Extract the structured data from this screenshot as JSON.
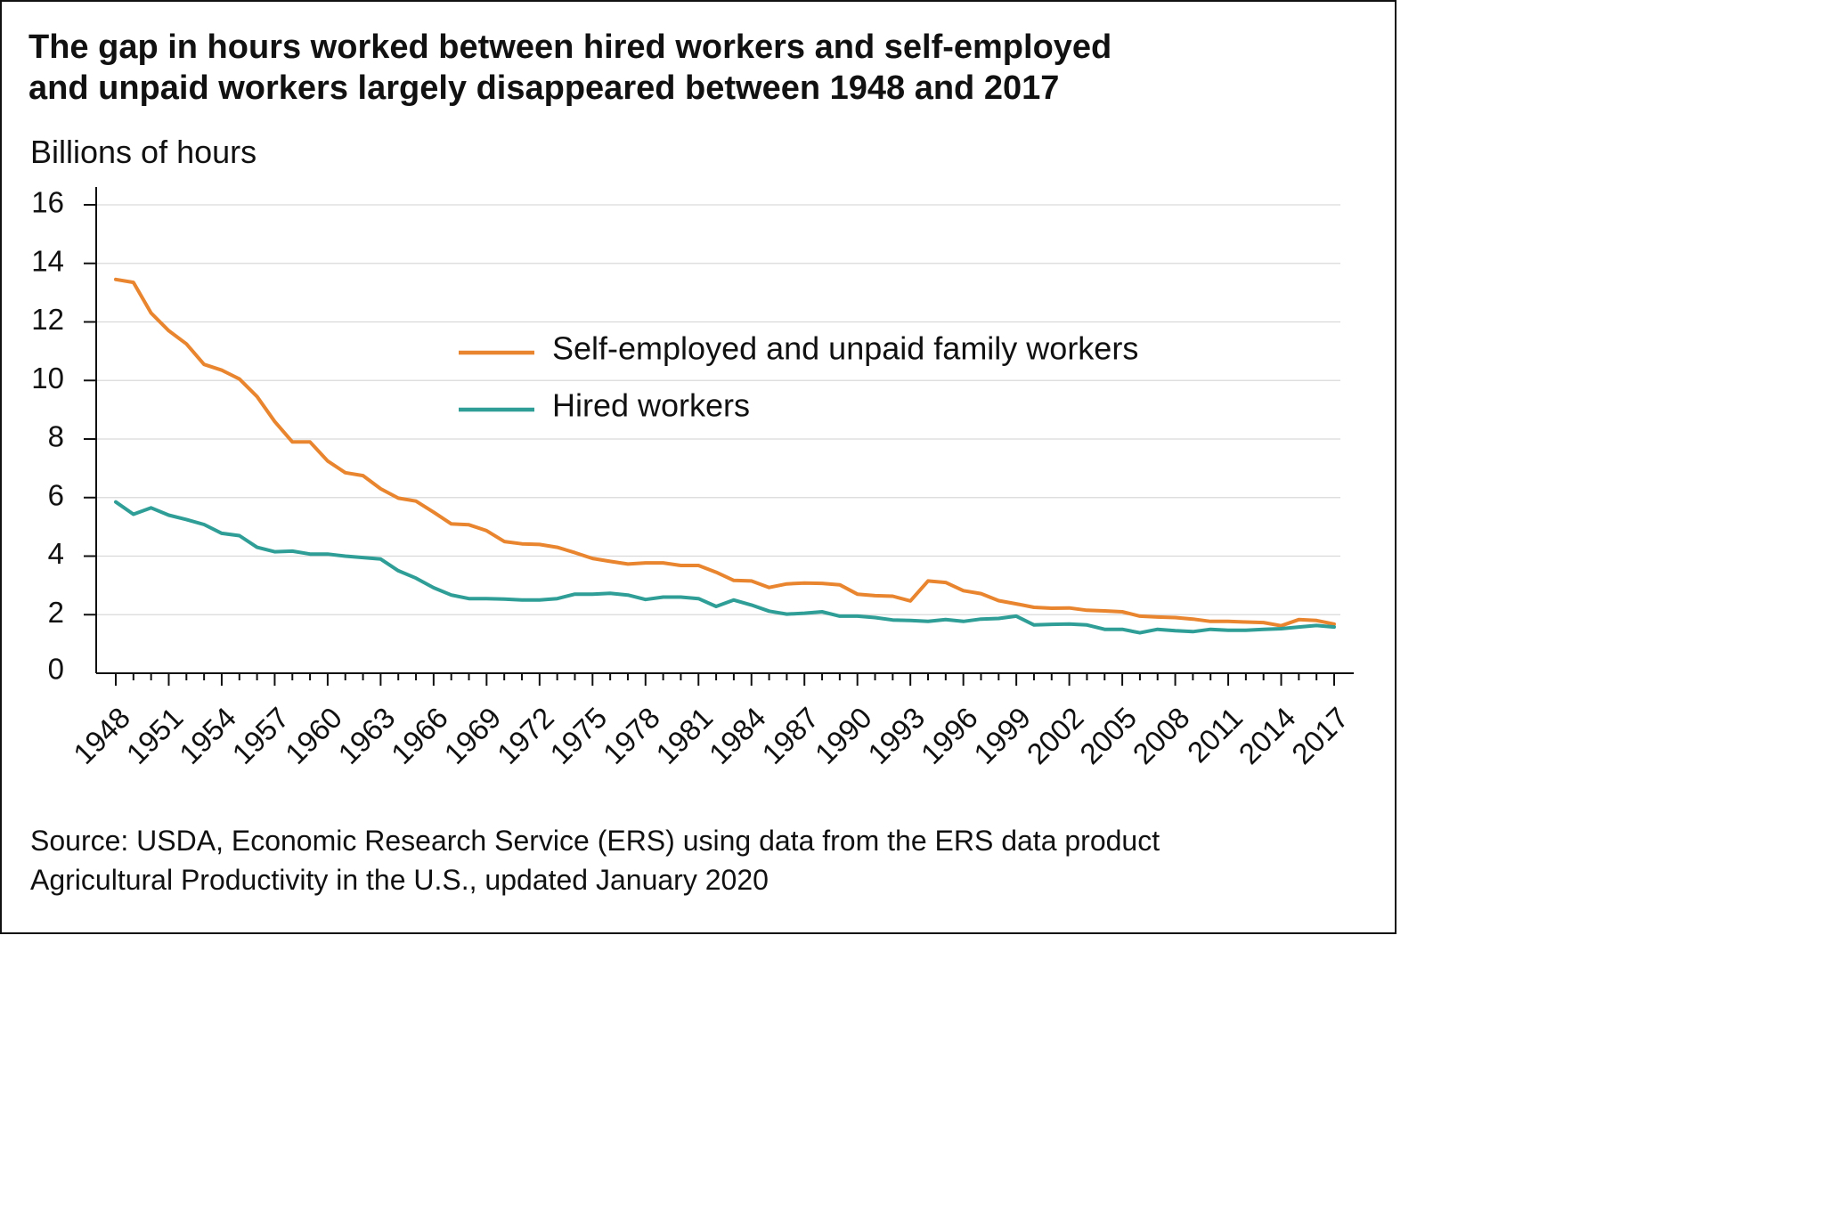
{
  "chart_data": {
    "type": "line",
    "title_lines": [
      "The gap in hours worked between hired workers and self-employed",
      "and unpaid workers largely disappeared between 1948 and 2017"
    ],
    "ylabel": "Billions of hours",
    "xlabel": "",
    "ylim": [
      0,
      16
    ],
    "yticks": [
      0,
      2,
      4,
      6,
      8,
      10,
      12,
      14,
      16
    ],
    "xlim": [
      1948,
      2017
    ],
    "xticks": [
      "1948",
      "1951",
      "1954",
      "1957",
      "1960",
      "1963",
      "1966",
      "1969",
      "1972",
      "1975",
      "1978",
      "1981",
      "1984",
      "1987",
      "1990",
      "1993",
      "1996",
      "1999",
      "2002",
      "2005",
      "2008",
      "2011",
      "2014",
      "2017"
    ],
    "grid": true,
    "legend_position": "upper-right",
    "x": [
      1948,
      1949,
      1950,
      1951,
      1952,
      1953,
      1954,
      1955,
      1956,
      1957,
      1958,
      1959,
      1960,
      1961,
      1962,
      1963,
      1964,
      1965,
      1966,
      1967,
      1968,
      1969,
      1970,
      1971,
      1972,
      1973,
      1974,
      1975,
      1976,
      1977,
      1978,
      1979,
      1980,
      1981,
      1982,
      1983,
      1984,
      1985,
      1986,
      1987,
      1988,
      1989,
      1990,
      1991,
      1992,
      1993,
      1994,
      1995,
      1996,
      1997,
      1998,
      1999,
      2000,
      2001,
      2002,
      2003,
      2004,
      2005,
      2006,
      2007,
      2008,
      2009,
      2010,
      2011,
      2012,
      2013,
      2014,
      2015,
      2016,
      2017
    ],
    "series": [
      {
        "name": "Self-employed and unpaid family workers",
        "color": "#E8852E",
        "values": [
          13.45,
          13.35,
          12.3,
          11.7,
          11.25,
          10.55,
          10.35,
          10.05,
          9.45,
          8.6,
          7.9,
          7.9,
          7.25,
          6.85,
          6.75,
          6.3,
          5.98,
          5.88,
          5.5,
          5.1,
          5.07,
          4.87,
          4.5,
          4.42,
          4.4,
          4.3,
          4.12,
          3.92,
          3.82,
          3.73,
          3.77,
          3.77,
          3.68,
          3.68,
          3.45,
          3.17,
          3.15,
          2.93,
          3.05,
          3.08,
          3.07,
          3.02,
          2.7,
          2.65,
          2.63,
          2.47,
          3.15,
          3.1,
          2.82,
          2.72,
          2.48,
          2.37,
          2.25,
          2.22,
          2.23,
          2.15,
          2.13,
          2.1,
          1.95,
          1.92,
          1.9,
          1.85,
          1.77,
          1.77,
          1.75,
          1.73,
          1.62,
          1.83,
          1.8,
          1.68
        ]
      },
      {
        "name": "Hired workers",
        "color": "#2E9E96",
        "values": [
          5.85,
          5.43,
          5.65,
          5.4,
          5.25,
          5.08,
          4.78,
          4.7,
          4.3,
          4.15,
          4.17,
          4.07,
          4.07,
          4.0,
          3.95,
          3.9,
          3.5,
          3.25,
          2.92,
          2.67,
          2.55,
          2.55,
          2.53,
          2.5,
          2.5,
          2.55,
          2.7,
          2.7,
          2.73,
          2.67,
          2.52,
          2.6,
          2.6,
          2.55,
          2.28,
          2.5,
          2.33,
          2.12,
          2.02,
          2.05,
          2.1,
          1.95,
          1.95,
          1.9,
          1.82,
          1.8,
          1.77,
          1.83,
          1.77,
          1.85,
          1.87,
          1.95,
          1.65,
          1.67,
          1.68,
          1.65,
          1.5,
          1.5,
          1.38,
          1.5,
          1.45,
          1.42,
          1.5,
          1.47,
          1.47,
          1.5,
          1.52,
          1.58,
          1.63,
          1.58
        ]
      }
    ],
    "source_lines": [
      "Source: USDA, Economic Research Service (ERS) using data from the ERS data product",
      "Agricultural Productivity in the U.S., updated January 2020"
    ]
  }
}
